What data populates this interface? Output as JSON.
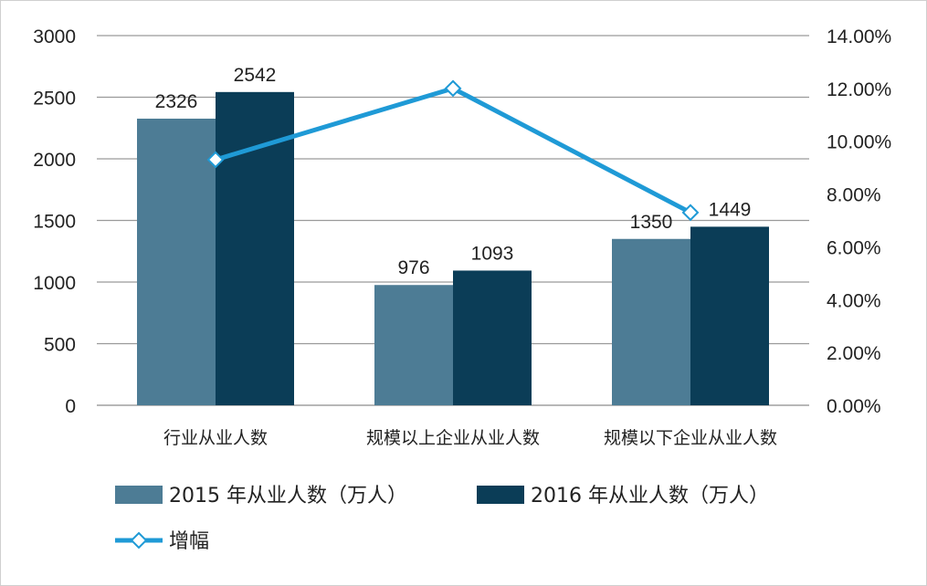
{
  "chart_data": {
    "type": "bar",
    "categories": [
      "行业从业人数",
      "规模以上企业从业人数",
      "规模以下企业从业人数"
    ],
    "series": [
      {
        "name": "2015 年从业人数（万人）",
        "values": [
          2326,
          976,
          1350
        ],
        "color": "#4d7c95",
        "axis": "left"
      },
      {
        "name": "2016 年从业人数（万人）",
        "values": [
          2542,
          1093,
          1449
        ],
        "color": "#0b3d57",
        "axis": "left"
      }
    ],
    "line_series": {
      "name": "增幅",
      "type": "line",
      "values": [
        9.3,
        12.0,
        7.3
      ],
      "unit": "%",
      "color": "#1f9ad6",
      "marker": "diamond-open",
      "axis": "right"
    },
    "left_axis": {
      "ylim": [
        0,
        3000
      ],
      "ticks": [
        "0",
        "500",
        "1000",
        "1500",
        "2000",
        "2500",
        "3000"
      ]
    },
    "right_axis": {
      "ylim": [
        0,
        14
      ],
      "ticks": [
        "0.00%",
        "2.00%",
        "4.00%",
        "6.00%",
        "8.00%",
        "10.00%",
        "12.00%",
        "14.00%"
      ]
    },
    "bar_labels": [
      [
        "2326",
        "976",
        "1350"
      ],
      [
        "2542",
        "1093",
        "1449"
      ]
    ],
    "grid": true,
    "legend_position": "bottom-left"
  }
}
